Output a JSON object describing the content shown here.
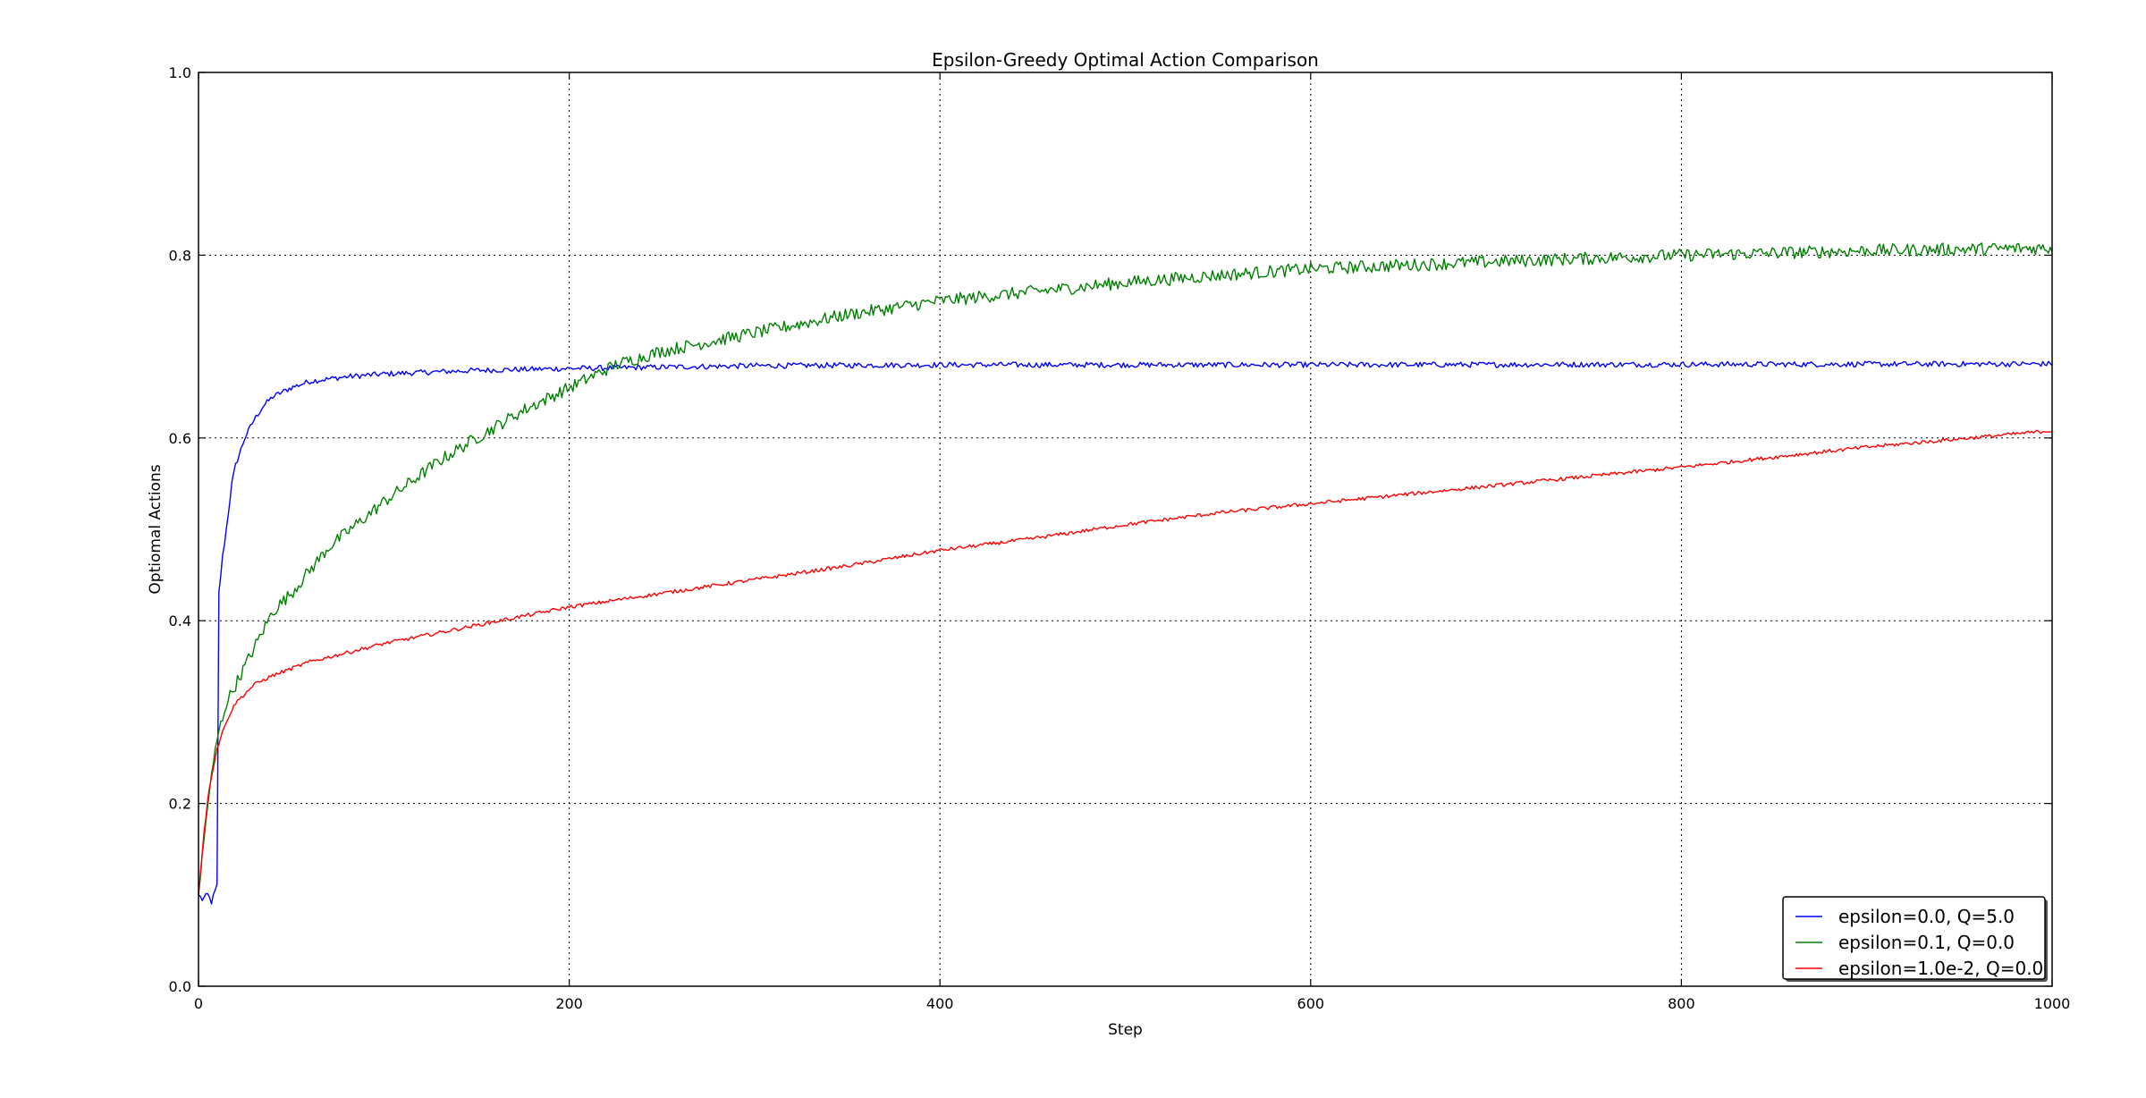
{
  "chart_data": {
    "type": "line",
    "title": "Epsilon-Greedy Optimal Action Comparison",
    "xlabel": "Step",
    "ylabel": "Optiomal Actions",
    "xlim": [
      0,
      1000
    ],
    "ylim": [
      0.0,
      1.0
    ],
    "x_ticks": [
      "0",
      "200",
      "400",
      "600",
      "800",
      "1000"
    ],
    "y_ticks": [
      "0.0",
      "0.2",
      "0.4",
      "0.6",
      "0.8",
      "1.0"
    ],
    "grid": true,
    "legend_position": "lower-right",
    "series": [
      {
        "name": "epsilon=0.0, Q=5.0",
        "color": "#0000ff",
        "noise": 0.003,
        "points": [
          [
            0,
            0.1
          ],
          [
            2,
            0.095
          ],
          [
            5,
            0.1
          ],
          [
            7,
            0.092
          ],
          [
            10,
            0.11
          ],
          [
            11,
            0.43
          ],
          [
            13,
            0.47
          ],
          [
            15,
            0.5
          ],
          [
            18,
            0.55
          ],
          [
            20,
            0.57
          ],
          [
            25,
            0.6
          ],
          [
            30,
            0.62
          ],
          [
            35,
            0.635
          ],
          [
            40,
            0.645
          ],
          [
            50,
            0.655
          ],
          [
            60,
            0.662
          ],
          [
            80,
            0.667
          ],
          [
            100,
            0.67
          ],
          [
            150,
            0.674
          ],
          [
            200,
            0.676
          ],
          [
            300,
            0.679
          ],
          [
            400,
            0.68
          ],
          [
            600,
            0.68
          ],
          [
            1000,
            0.681
          ]
        ]
      },
      {
        "name": "epsilon=0.1, Q=0.0",
        "color": "#008000",
        "noise": 0.007,
        "points": [
          [
            0,
            0.1
          ],
          [
            5,
            0.2
          ],
          [
            10,
            0.27
          ],
          [
            15,
            0.31
          ],
          [
            20,
            0.33
          ],
          [
            30,
            0.37
          ],
          [
            40,
            0.41
          ],
          [
            50,
            0.43
          ],
          [
            70,
            0.48
          ],
          [
            100,
            0.53
          ],
          [
            130,
            0.575
          ],
          [
            150,
            0.6
          ],
          [
            175,
            0.63
          ],
          [
            200,
            0.655
          ],
          [
            225,
            0.68
          ],
          [
            250,
            0.695
          ],
          [
            300,
            0.715
          ],
          [
            350,
            0.735
          ],
          [
            400,
            0.75
          ],
          [
            450,
            0.76
          ],
          [
            500,
            0.77
          ],
          [
            550,
            0.778
          ],
          [
            600,
            0.785
          ],
          [
            700,
            0.793
          ],
          [
            800,
            0.8
          ],
          [
            900,
            0.805
          ],
          [
            1000,
            0.808
          ]
        ]
      },
      {
        "name": "epsilon=1.0e-2, Q=0.0",
        "color": "#ff0000",
        "noise": 0.002,
        "points": [
          [
            0,
            0.1
          ],
          [
            3,
            0.17
          ],
          [
            6,
            0.22
          ],
          [
            10,
            0.26
          ],
          [
            15,
            0.29
          ],
          [
            20,
            0.31
          ],
          [
            30,
            0.33
          ],
          [
            40,
            0.34
          ],
          [
            60,
            0.355
          ],
          [
            80,
            0.365
          ],
          [
            100,
            0.375
          ],
          [
            150,
            0.395
          ],
          [
            200,
            0.415
          ],
          [
            250,
            0.43
          ],
          [
            300,
            0.445
          ],
          [
            350,
            0.46
          ],
          [
            400,
            0.477
          ],
          [
            450,
            0.49
          ],
          [
            500,
            0.505
          ],
          [
            550,
            0.518
          ],
          [
            600,
            0.528
          ],
          [
            700,
            0.548
          ],
          [
            800,
            0.568
          ],
          [
            900,
            0.59
          ],
          [
            1000,
            0.608
          ]
        ]
      }
    ]
  }
}
